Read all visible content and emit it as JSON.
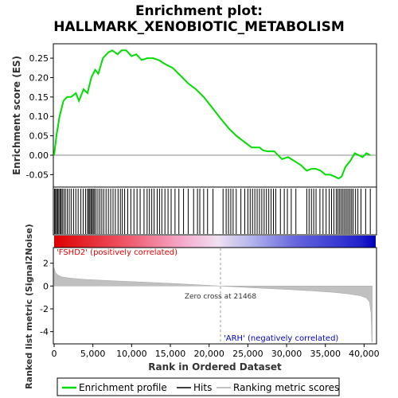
{
  "chart_data": {
    "type": "line",
    "title_line1": "Enrichment plot:",
    "title_line2": "HALLMARK_XENOBIOTIC_METABOLISM",
    "xlabel": "Rank in Ordered Dataset",
    "ylabel_top": "Enrichment score (ES)",
    "ylabel_bottom": "Ranked list metric (Signal2Noise)",
    "xlim": [
      0,
      41500
    ],
    "x_ticks": [
      0,
      5000,
      10000,
      15000,
      20000,
      25000,
      30000,
      35000,
      40000
    ],
    "x_tick_labels": [
      "0",
      "5,000",
      "10,000",
      "15,000",
      "20,000",
      "25,000",
      "30,000",
      "35,000",
      "40,000"
    ],
    "es_ylim": [
      -0.08,
      0.285
    ],
    "es_ticks": [
      -0.05,
      0.0,
      0.05,
      0.1,
      0.15,
      0.2,
      0.25
    ],
    "es_tick_labels": [
      "-0.05",
      "0.00",
      "0.05",
      "0.10",
      "0.15",
      "0.20",
      "0.25"
    ],
    "metric_ylim": [
      -5.0,
      3.3
    ],
    "metric_ticks": [
      -4,
      -2,
      0,
      2
    ],
    "metric_tick_labels": [
      "-4",
      "-2",
      "0",
      "2"
    ],
    "zero_cross_rank": 21468,
    "zero_cross_label": "Zero cross at 21468",
    "positive_label": "'FSHD2' (positively correlated)",
    "negative_label": "'ARH' (negatively correlated)",
    "enrichment_profile": {
      "name": "Enrichment profile",
      "color": "#00dd00",
      "x": [
        0,
        300,
        700,
        1200,
        1700,
        2200,
        2800,
        3200,
        3800,
        4300,
        4800,
        5300,
        5700,
        6300,
        7000,
        7500,
        8200,
        8700,
        9300,
        10000,
        10600,
        11300,
        12000,
        12800,
        13500,
        14300,
        15300,
        16300,
        17300,
        18300,
        19300,
        20300,
        21468,
        22500,
        23500,
        24500,
        25500,
        26500,
        27000,
        27600,
        28400,
        29400,
        30200,
        31000,
        31800,
        32600,
        33200,
        33800,
        34400,
        35000,
        35600,
        36200,
        36700,
        37100,
        37600,
        38200,
        38800,
        39300,
        39800,
        40300,
        40800
      ],
      "y": [
        0.0,
        0.05,
        0.1,
        0.14,
        0.15,
        0.15,
        0.16,
        0.14,
        0.17,
        0.16,
        0.2,
        0.22,
        0.21,
        0.25,
        0.265,
        0.27,
        0.26,
        0.27,
        0.27,
        0.255,
        0.26,
        0.245,
        0.25,
        0.25,
        0.245,
        0.235,
        0.225,
        0.205,
        0.185,
        0.17,
        0.15,
        0.125,
        0.095,
        0.07,
        0.05,
        0.035,
        0.02,
        0.02,
        0.012,
        0.01,
        0.01,
        -0.01,
        -0.005,
        -0.015,
        -0.025,
        -0.04,
        -0.035,
        -0.035,
        -0.04,
        -0.05,
        -0.05,
        -0.055,
        -0.06,
        -0.055,
        -0.03,
        -0.015,
        0.005,
        0.0,
        -0.005,
        0.005,
        0.0
      ]
    },
    "hits": {
      "name": "Hits",
      "color": "#000000",
      "ranks": [
        60,
        180,
        320,
        450,
        600,
        760,
        900,
        1050,
        1250,
        1450,
        1700,
        1950,
        2200,
        2500,
        2800,
        3100,
        3450,
        3750,
        4050,
        4300,
        4450,
        4600,
        4750,
        4900,
        5050,
        5200,
        5400,
        5650,
        5900,
        6150,
        6400,
        6700,
        7000,
        7300,
        7600,
        7900,
        8250,
        8550,
        8800,
        9100,
        9500,
        9900,
        10300,
        10700,
        11100,
        11600,
        12000,
        12300,
        12600,
        12900,
        13300,
        13600,
        13900,
        14300,
        14700,
        15100,
        15600,
        16100,
        16700,
        17300,
        18000,
        18500,
        18800,
        19300,
        19800,
        20500,
        21800,
        22200,
        22500,
        22800,
        23100,
        23500,
        24100,
        24600,
        25000,
        25300,
        25600,
        25900,
        26200,
        26500,
        26800,
        27100,
        27400,
        27700,
        28000,
        28300,
        28600,
        29200,
        29700,
        30100,
        30600,
        31200,
        32600,
        32900,
        33200,
        33500,
        33800,
        34300,
        34700,
        35100,
        35500,
        35800,
        36100,
        36400,
        36600,
        36800,
        37000,
        37200,
        37400,
        37600,
        37800,
        38000,
        38200,
        38400,
        38600,
        38900,
        39200,
        39600,
        40200,
        40800
      ]
    },
    "ranking_metric": {
      "name": "Ranking metric scores",
      "color": "#c0c0c0",
      "x": [
        0,
        150,
        500,
        1000,
        2000,
        4000,
        8000,
        12000,
        16000,
        19000,
        21468,
        24000,
        27000,
        30000,
        33000,
        36000,
        38000,
        39500,
        40300,
        40700,
        40900,
        41000,
        41050
      ],
      "y": [
        1.6,
        1.2,
        0.95,
        0.8,
        0.7,
        0.58,
        0.45,
        0.33,
        0.2,
        0.09,
        0.0,
        -0.1,
        -0.2,
        -0.3,
        -0.42,
        -0.55,
        -0.7,
        -0.85,
        -1.05,
        -1.4,
        -2.4,
        -4.9,
        -4.9
      ]
    },
    "legend": [
      "Enrichment profile",
      "Hits",
      "Ranking metric scores"
    ]
  }
}
